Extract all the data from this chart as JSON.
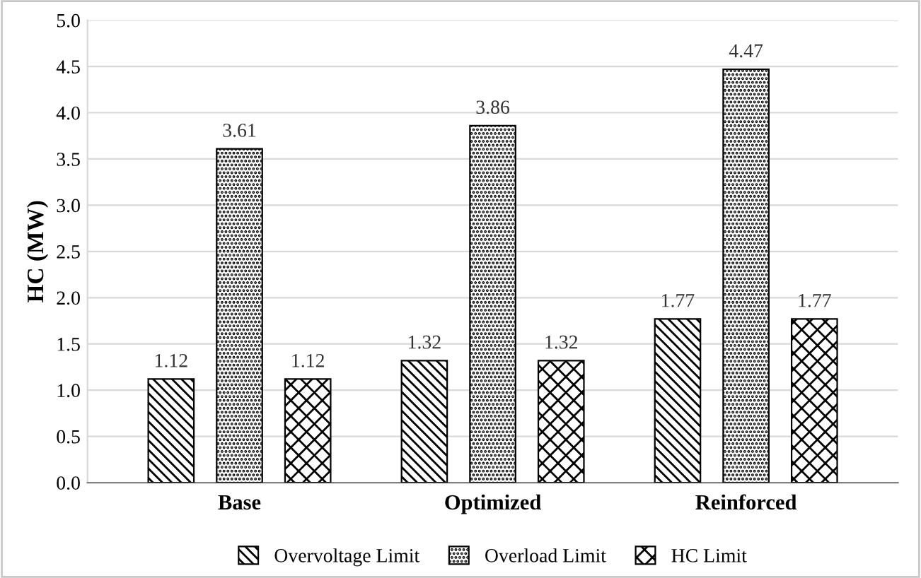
{
  "chart_data": {
    "type": "bar",
    "ylabel": "HC (MW)",
    "categories": [
      "Base",
      "Optimized",
      "Reinforced"
    ],
    "series": [
      {
        "name": "Overvoltage Limit",
        "color": "#000000",
        "values": [
          1.12,
          1.32,
          1.77
        ]
      },
      {
        "name": "Overload Limit",
        "color": "#000000",
        "values": [
          3.61,
          3.86,
          4.47
        ]
      },
      {
        "name": "HC Limit",
        "color": "#000000",
        "values": [
          1.12,
          1.32,
          1.77
        ]
      }
    ],
    "ylim": [
      0,
      5
    ],
    "yticks": [
      {
        "value": 0,
        "label": "0.0"
      },
      {
        "value": 0.5,
        "label": "0.5"
      },
      {
        "value": 1,
        "label": "1.0"
      },
      {
        "value": 1.5,
        "label": "1.5"
      },
      {
        "value": 2,
        "label": "2.0"
      },
      {
        "value": 2.5,
        "label": "2.5"
      },
      {
        "value": 3,
        "label": "3.0"
      },
      {
        "value": 3.5,
        "label": "3.5"
      },
      {
        "value": 4,
        "label": "4.0"
      },
      {
        "value": 4.5,
        "label": "4.5"
      },
      {
        "value": 5,
        "label": "5.0"
      }
    ],
    "grid": "y",
    "legend": "bottom",
    "data_labels": true
  }
}
